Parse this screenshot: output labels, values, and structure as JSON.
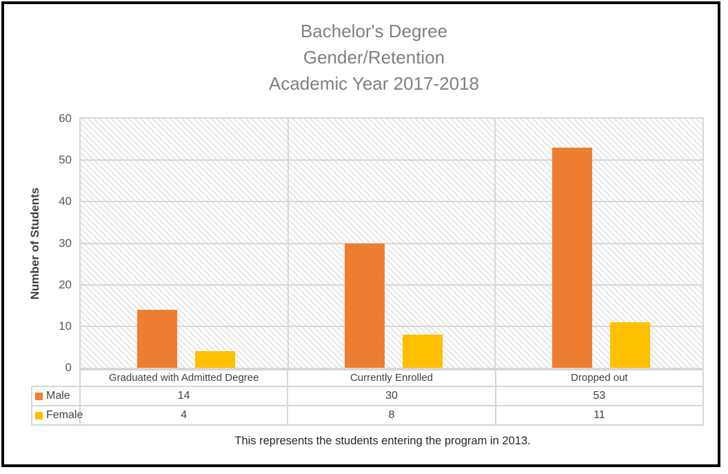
{
  "title": {
    "lines": [
      "Bachelor's Degree",
      "Gender/Retention",
      "Academic Year 2017-2018"
    ],
    "color": "#808080"
  },
  "note": "This represents the students entering the program in 2013.",
  "colors": {
    "male": "#ED7D31",
    "female": "#FFC000",
    "gridline": "#D6D6D6",
    "frame_border": "#000000",
    "title_text": "#808080",
    "axis_text": "#595959",
    "table_text": "#404040"
  },
  "chart_data": {
    "type": "bar",
    "title": "Bachelor's Degree Gender/Retention Academic Year 2017-2018",
    "categories": [
      "Graduated with Admitted Degree",
      "Currently Enrolled",
      "Dropped out"
    ],
    "series": [
      {
        "name": "Male",
        "color": "#ED7D31",
        "values": [
          14,
          30,
          53
        ]
      },
      {
        "name": "Female",
        "color": "#FFC000",
        "values": [
          4,
          8,
          11
        ]
      }
    ],
    "xlabel": "",
    "ylabel": "Number of Students",
    "ylim": [
      0,
      60
    ],
    "yticks": [
      0,
      10,
      20,
      30,
      40,
      50,
      60
    ],
    "grid": true,
    "plot_background": "light-diagonal-hatch",
    "legend_position": "data-table-left",
    "data_table": true,
    "annotation": "This represents the students entering the program in 2013."
  }
}
